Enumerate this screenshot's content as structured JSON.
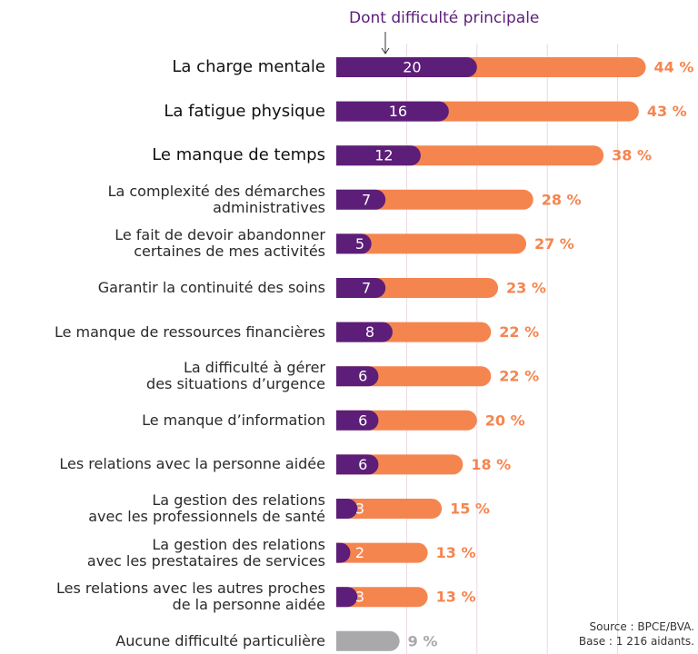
{
  "chart_data": {
    "type": "bar",
    "categories": [
      "La charge mentale",
      "La fatigue physique",
      "Le manque de temps",
      "La complexité des démarches\nadministratives",
      "Le fait de devoir abandonner\ncertaines de mes activités",
      "Garantir la continuité des soins",
      "Le manque de ressources financières",
      "La difficulté à gérer\ndes situations d’urgence",
      "Le manque d’information",
      "Les relations avec la personne aidée",
      "La gestion des relations\navec les professionnels de santé",
      "La gestion des relations\navec les prestataires de services",
      "Les relations avec les autres proches\nde la personne aidée",
      "Aucune difficulté particulière"
    ],
    "emphasized": [
      true,
      true,
      true,
      false,
      false,
      false,
      false,
      false,
      false,
      false,
      false,
      false,
      false,
      false
    ],
    "series": [
      {
        "color": "#f5854f",
        "colors": [
          "#f5854f",
          "#f5854f",
          "#f5854f",
          "#f5854f",
          "#f5854f",
          "#f5854f",
          "#f5854f",
          "#f5854f",
          "#f5854f",
          "#f5854f",
          "#f5854f",
          "#f5854f",
          "#f5854f",
          "#a9a9ab"
        ],
        "values": [
          44,
          43,
          38,
          28,
          27,
          23,
          22,
          22,
          20,
          18,
          15,
          13,
          13,
          9
        ],
        "value_labels": [
          "44 %",
          "43 %",
          "38 %",
          "28 %",
          "27 %",
          "23 %",
          "22 %",
          "22 %",
          "20 %",
          "18 %",
          "15 %",
          "13 %",
          "13 %",
          "9 %"
        ]
      },
      {
        "name": "Dont difficulté principale",
        "color": "#5c1e78",
        "values": [
          20,
          16,
          12,
          7,
          5,
          7,
          8,
          6,
          6,
          6,
          3,
          2,
          3,
          null
        ]
      }
    ],
    "xlim": [
      0,
      50
    ],
    "xticks": [
      10,
      20,
      30,
      40
    ],
    "grid": true,
    "source": [
      "Source : BPCE/BVA.",
      "Base : 1 216 aidants."
    ]
  }
}
